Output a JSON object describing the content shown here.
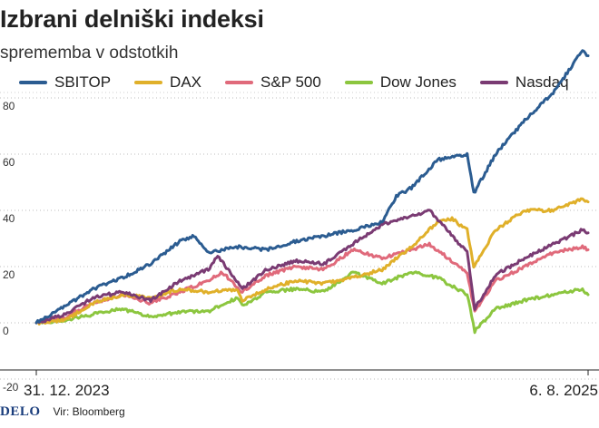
{
  "header": {
    "title": "Izbrani delniški indeksi",
    "subtitle": "sprememba v odstotkih"
  },
  "footer": {
    "logo": "DELO",
    "source": "Vir: Bloomberg"
  },
  "chart_data": {
    "type": "line",
    "title": "Izbrani delniški indeksi",
    "subtitle": "sprememba v odstotkih",
    "x_start": "31. 12. 2023",
    "x_end": "6. 8. 2025",
    "x_tick_labels": [
      "31. 12. 2023",
      "6. 8. 2025"
    ],
    "y_ticks": [
      -20,
      0,
      20,
      40,
      60,
      80
    ],
    "ylim": [
      -25,
      100
    ],
    "grid": "horizontal dotted",
    "legend_position": "top",
    "series": [
      {
        "name": "SBITOP",
        "color": "#2b5c91",
        "points": [
          [
            "2023-12-31",
            0
          ],
          [
            "2024-01-31",
            6
          ],
          [
            "2024-02-29",
            12
          ],
          [
            "2024-03-31",
            16
          ],
          [
            "2024-04-30",
            21
          ],
          [
            "2024-05-31",
            29
          ],
          [
            "2024-06-15",
            31
          ],
          [
            "2024-06-30",
            25
          ],
          [
            "2024-07-31",
            27
          ],
          [
            "2024-08-31",
            26
          ],
          [
            "2024-09-30",
            29
          ],
          [
            "2024-10-31",
            31
          ],
          [
            "2024-11-30",
            33
          ],
          [
            "2024-12-31",
            36
          ],
          [
            "2025-01-15",
            45
          ],
          [
            "2025-01-31",
            48
          ],
          [
            "2025-02-28",
            58
          ],
          [
            "2025-03-31",
            60
          ],
          [
            "2025-04-07",
            46
          ],
          [
            "2025-04-30",
            60
          ],
          [
            "2025-05-31",
            72
          ],
          [
            "2025-06-30",
            82
          ],
          [
            "2025-07-15",
            89
          ],
          [
            "2025-07-31",
            97
          ],
          [
            "2025-08-06",
            95
          ]
        ]
      },
      {
        "name": "DAX",
        "color": "#e0b02a",
        "points": [
          [
            "2023-12-31",
            0
          ],
          [
            "2024-01-31",
            1
          ],
          [
            "2024-02-29",
            7
          ],
          [
            "2024-03-31",
            10
          ],
          [
            "2024-04-30",
            9
          ],
          [
            "2024-05-31",
            12
          ],
          [
            "2024-06-30",
            11
          ],
          [
            "2024-07-31",
            12
          ],
          [
            "2024-08-05",
            8
          ],
          [
            "2024-08-31",
            12
          ],
          [
            "2024-09-30",
            15
          ],
          [
            "2024-10-31",
            14
          ],
          [
            "2024-11-30",
            16
          ],
          [
            "2024-12-31",
            19
          ],
          [
            "2025-01-31",
            27
          ],
          [
            "2025-02-28",
            36
          ],
          [
            "2025-03-15",
            37
          ],
          [
            "2025-03-31",
            33
          ],
          [
            "2025-04-07",
            20
          ],
          [
            "2025-04-30",
            33
          ],
          [
            "2025-05-31",
            40
          ],
          [
            "2025-06-30",
            40
          ],
          [
            "2025-07-31",
            44
          ],
          [
            "2025-08-06",
            43
          ]
        ]
      },
      {
        "name": "S&P 500",
        "color": "#e06a7b",
        "points": [
          [
            "2023-12-31",
            0
          ],
          [
            "2024-01-31",
            2
          ],
          [
            "2024-02-29",
            7
          ],
          [
            "2024-03-31",
            10
          ],
          [
            "2024-04-30",
            7
          ],
          [
            "2024-05-31",
            11
          ],
          [
            "2024-06-30",
            15
          ],
          [
            "2024-07-15",
            18
          ],
          [
            "2024-08-05",
            11
          ],
          [
            "2024-08-31",
            17
          ],
          [
            "2024-09-30",
            20
          ],
          [
            "2024-10-31",
            19
          ],
          [
            "2024-11-30",
            26
          ],
          [
            "2024-12-31",
            23
          ],
          [
            "2025-01-31",
            26
          ],
          [
            "2025-02-19",
            28
          ],
          [
            "2025-03-31",
            18
          ],
          [
            "2025-04-08",
            4
          ],
          [
            "2025-04-30",
            15
          ],
          [
            "2025-05-31",
            20
          ],
          [
            "2025-06-30",
            25
          ],
          [
            "2025-07-31",
            27
          ],
          [
            "2025-08-06",
            26
          ]
        ]
      },
      {
        "name": "Dow Jones",
        "color": "#8cc63f",
        "points": [
          [
            "2023-12-31",
            0
          ],
          [
            "2024-01-31",
            1
          ],
          [
            "2024-02-29",
            3
          ],
          [
            "2024-03-31",
            5
          ],
          [
            "2024-04-30",
            2
          ],
          [
            "2024-05-31",
            4
          ],
          [
            "2024-06-30",
            4
          ],
          [
            "2024-07-31",
            9
          ],
          [
            "2024-08-05",
            6
          ],
          [
            "2024-08-31",
            11
          ],
          [
            "2024-09-30",
            12
          ],
          [
            "2024-10-31",
            11
          ],
          [
            "2024-11-30",
            18
          ],
          [
            "2024-12-31",
            14
          ],
          [
            "2025-01-31",
            18
          ],
          [
            "2025-02-28",
            16
          ],
          [
            "2025-03-31",
            10
          ],
          [
            "2025-04-08",
            -3
          ],
          [
            "2025-04-30",
            5
          ],
          [
            "2025-05-31",
            8
          ],
          [
            "2025-06-30",
            10
          ],
          [
            "2025-07-31",
            12
          ],
          [
            "2025-08-06",
            10
          ]
        ]
      },
      {
        "name": "Nasdaq",
        "color": "#7a3b73",
        "points": [
          [
            "2023-12-31",
            0
          ],
          [
            "2024-01-31",
            3
          ],
          [
            "2024-02-29",
            9
          ],
          [
            "2024-03-31",
            11
          ],
          [
            "2024-04-30",
            8
          ],
          [
            "2024-05-31",
            15
          ],
          [
            "2024-06-30",
            19
          ],
          [
            "2024-07-10",
            24
          ],
          [
            "2024-08-05",
            12
          ],
          [
            "2024-08-31",
            19
          ],
          [
            "2024-09-30",
            22
          ],
          [
            "2024-10-31",
            21
          ],
          [
            "2024-11-30",
            28
          ],
          [
            "2024-12-31",
            35
          ],
          [
            "2025-01-31",
            38
          ],
          [
            "2025-02-19",
            40
          ],
          [
            "2025-03-31",
            25
          ],
          [
            "2025-04-08",
            5
          ],
          [
            "2025-04-30",
            17
          ],
          [
            "2025-05-31",
            23
          ],
          [
            "2025-06-30",
            28
          ],
          [
            "2025-07-31",
            33
          ],
          [
            "2025-08-06",
            32
          ]
        ]
      }
    ]
  }
}
